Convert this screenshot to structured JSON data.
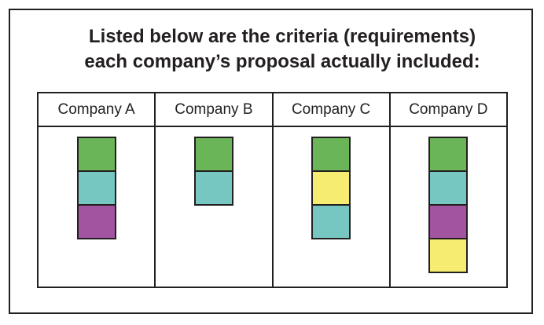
{
  "title": {
    "line1": "Listed below are the criteria (requirements)",
    "line2": "each company’s proposal actually included:"
  },
  "colors": {
    "green": "#6ab557",
    "teal": "#76c6c2",
    "purple": "#a354a0",
    "yellow": "#f6ec71"
  },
  "companies": [
    {
      "name": "Company A",
      "criteria": [
        "green",
        "teal",
        "purple"
      ]
    },
    {
      "name": "Company B",
      "criteria": [
        "green",
        "teal"
      ]
    },
    {
      "name": "Company C",
      "criteria": [
        "green",
        "yellow",
        "teal"
      ]
    },
    {
      "name": "Company D",
      "criteria": [
        "green",
        "teal",
        "purple",
        "yellow"
      ]
    }
  ]
}
